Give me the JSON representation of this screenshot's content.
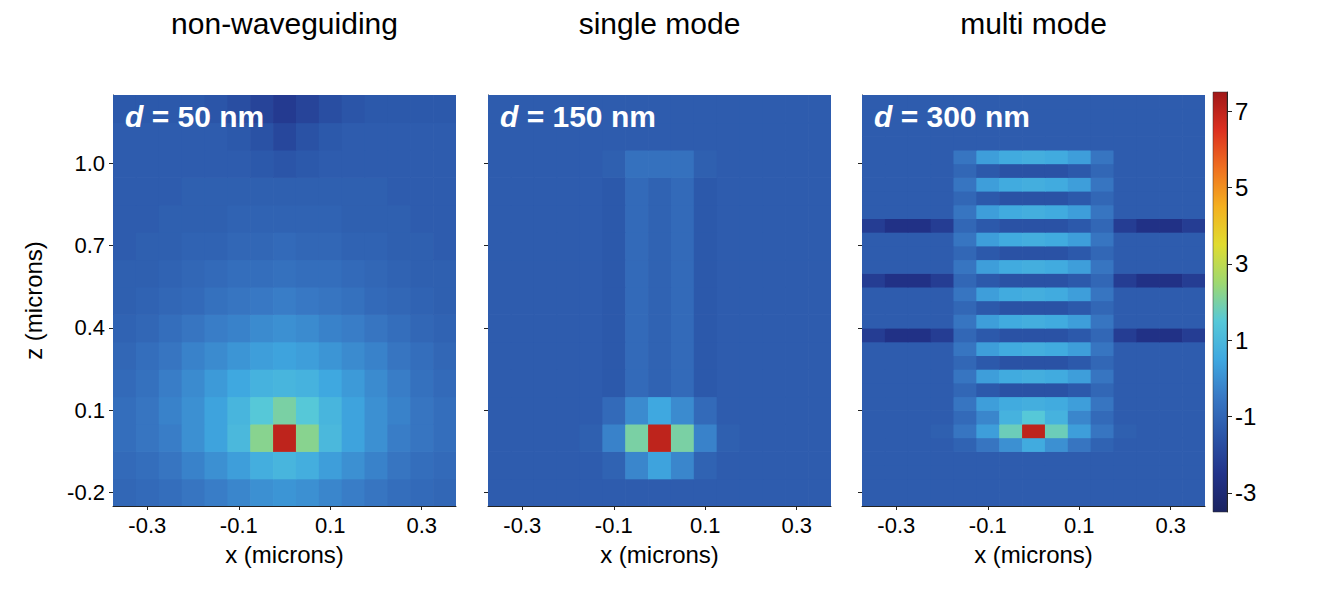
{
  "chart_data": [
    {
      "type": "heatmap",
      "title": "non-waveguiding",
      "annotation": "d = 50 nm",
      "x_label": "x (microns)",
      "y_label": "z (microns)",
      "xlim": [
        -0.375,
        0.375
      ],
      "ylim": [
        -0.25,
        1.25
      ],
      "xticks": [
        -0.3,
        -0.1,
        0.1,
        0.3
      ],
      "yticks": [
        -0.2,
        0.1,
        0.4,
        0.7,
        {
          "value": 1,
          "label": "1.0"
        }
      ],
      "x": [
        -0.35,
        -0.3,
        -0.25,
        -0.2,
        -0.15,
        -0.1,
        -0.05,
        0,
        0.05,
        0.1,
        0.15,
        0.2,
        0.25,
        0.3,
        0.35
      ],
      "y": [
        -0.2,
        -0.1,
        0,
        0.1,
        0.2,
        0.3,
        0.4,
        0.5,
        0.6,
        0.7,
        0.8,
        0.9,
        1.0,
        1.1,
        1.2
      ],
      "cells": [
        [
          -1.0,
          -0.9,
          -0.8,
          -0.6,
          -0.4,
          -0.2,
          0.0,
          0.1,
          0.0,
          -0.2,
          -0.4,
          -0.6,
          -0.8,
          -0.9,
          -1.0
        ],
        [
          -0.9,
          -0.8,
          -0.6,
          -0.3,
          0.0,
          0.3,
          0.7,
          0.9,
          0.7,
          0.3,
          0.0,
          -0.3,
          -0.6,
          -0.8,
          -0.9
        ],
        [
          -0.8,
          -0.6,
          -0.4,
          0.0,
          0.4,
          1.0,
          2.2,
          7.0,
          2.2,
          1.0,
          0.4,
          0.0,
          -0.4,
          -0.6,
          -0.8
        ],
        [
          -0.8,
          -0.6,
          -0.3,
          0.0,
          0.4,
          0.9,
          1.5,
          2.0,
          1.5,
          0.9,
          0.4,
          0.0,
          -0.3,
          -0.6,
          -0.8
        ],
        [
          -0.9,
          -0.7,
          -0.4,
          -0.1,
          0.2,
          0.5,
          0.8,
          0.9,
          0.8,
          0.5,
          0.2,
          -0.1,
          -0.4,
          -0.7,
          -0.9
        ],
        [
          -1.0,
          -0.8,
          -0.6,
          -0.3,
          -0.1,
          0.1,
          0.3,
          0.4,
          0.3,
          0.1,
          -0.1,
          -0.3,
          -0.6,
          -0.8,
          -1.0
        ],
        [
          -1.1,
          -1.0,
          -0.8,
          -0.6,
          -0.4,
          -0.3,
          -0.1,
          0.0,
          -0.1,
          -0.3,
          -0.4,
          -0.6,
          -0.8,
          -1.0,
          -1.1
        ],
        [
          -1.2,
          -1.1,
          -1.0,
          -0.9,
          -0.7,
          -0.6,
          -0.5,
          -0.4,
          -0.5,
          -0.6,
          -0.7,
          -0.9,
          -1.0,
          -1.1,
          -1.2
        ],
        [
          -1.2,
          -1.2,
          -1.1,
          -1.0,
          -0.9,
          -0.8,
          -0.8,
          -0.7,
          -0.8,
          -0.8,
          -0.9,
          -1.0,
          -1.1,
          -1.2,
          -1.2
        ],
        [
          -1.3,
          -1.2,
          -1.2,
          -1.1,
          -1.1,
          -1.0,
          -1.0,
          -0.9,
          -1.0,
          -1.0,
          -1.1,
          -1.1,
          -1.2,
          -1.2,
          -1.3
        ],
        [
          -1.3,
          -1.3,
          -1.2,
          -1.2,
          -1.2,
          -1.1,
          -1.1,
          -1.1,
          -1.1,
          -1.1,
          -1.2,
          -1.2,
          -1.2,
          -1.3,
          -1.3
        ],
        [
          -1.3,
          -1.3,
          -1.3,
          -1.2,
          -1.2,
          -1.2,
          -1.2,
          -1.2,
          -1.2,
          -1.2,
          -1.2,
          -1.2,
          -1.3,
          -1.3,
          -1.3
        ],
        [
          -1.3,
          -1.3,
          -1.3,
          -1.3,
          -1.3,
          -1.3,
          -1.4,
          -1.5,
          -1.4,
          -1.3,
          -1.3,
          -1.3,
          -1.3,
          -1.3,
          -1.3
        ],
        [
          -1.3,
          -1.3,
          -1.3,
          -1.3,
          -1.3,
          -1.4,
          -1.6,
          -1.9,
          -1.6,
          -1.4,
          -1.3,
          -1.3,
          -1.3,
          -1.3,
          -1.3
        ],
        [
          -1.4,
          -1.4,
          -1.4,
          -1.4,
          -1.5,
          -1.7,
          -2.0,
          -2.3,
          -2.0,
          -1.7,
          -1.5,
          -1.4,
          -1.4,
          -1.4,
          -1.4
        ]
      ]
    },
    {
      "type": "heatmap",
      "title": "single mode",
      "annotation": "d = 150 nm",
      "x_label": "x (microns)",
      "tick_labels": "x",
      "xlim": [
        -0.375,
        0.375
      ],
      "ylim": [
        -0.25,
        1.25
      ],
      "xticks": [
        -0.3,
        -0.1,
        0.1,
        0.3
      ],
      "yticks": [
        -0.2,
        0.1,
        0.4,
        0.7,
        {
          "value": 1,
          "label": "1.0"
        }
      ],
      "x": [
        -0.35,
        -0.3,
        -0.25,
        -0.2,
        -0.15,
        -0.1,
        -0.05,
        0,
        0.05,
        0.1,
        0.15,
        0.2,
        0.25,
        0.3,
        0.35
      ],
      "y": [
        -0.2,
        -0.1,
        0,
        0.1,
        0.2,
        0.3,
        0.4,
        0.5,
        0.6,
        0.7,
        0.8,
        0.9,
        1.0,
        1.1,
        1.2
      ],
      "cells": [
        [
          -1.3,
          -1.3,
          -1.3,
          -1.3,
          -1.3,
          -1.3,
          -1.3,
          -1.3,
          -1.3,
          -1.3,
          -1.3,
          -1.3,
          -1.3,
          -1.3,
          -1.3
        ],
        [
          -1.3,
          -1.3,
          -1.3,
          -1.3,
          -1.3,
          -1.1,
          -0.2,
          0.4,
          -0.2,
          -1.1,
          -1.3,
          -1.3,
          -1.3,
          -1.3,
          -1.3
        ],
        [
          -1.3,
          -1.3,
          -1.3,
          -1.3,
          -1.2,
          -0.3,
          2.0,
          7.0,
          2.0,
          -0.3,
          -1.2,
          -1.3,
          -1.3,
          -1.3,
          -1.3
        ],
        [
          -1.3,
          -1.3,
          -1.3,
          -1.3,
          -1.3,
          -0.9,
          -0.1,
          0.5,
          -0.1,
          -0.9,
          -1.3,
          -1.3,
          -1.3,
          -1.3,
          -1.3
        ],
        [
          -1.3,
          -1.3,
          -1.3,
          -1.3,
          -1.3,
          -1.4,
          -0.9,
          -1.1,
          -0.9,
          -1.4,
          -1.3,
          -1.3,
          -1.3,
          -1.3,
          -1.3
        ],
        [
          -1.3,
          -1.3,
          -1.3,
          -1.3,
          -1.3,
          -1.4,
          -0.9,
          -1.1,
          -0.9,
          -1.4,
          -1.3,
          -1.3,
          -1.3,
          -1.3,
          -1.3
        ],
        [
          -1.3,
          -1.3,
          -1.3,
          -1.3,
          -1.3,
          -1.4,
          -0.9,
          -1.1,
          -0.9,
          -1.4,
          -1.3,
          -1.3,
          -1.3,
          -1.3,
          -1.3
        ],
        [
          -1.3,
          -1.3,
          -1.3,
          -1.3,
          -1.3,
          -1.4,
          -0.9,
          -1.1,
          -0.9,
          -1.4,
          -1.3,
          -1.3,
          -1.3,
          -1.3,
          -1.3
        ],
        [
          -1.3,
          -1.3,
          -1.3,
          -1.3,
          -1.3,
          -1.4,
          -0.9,
          -1.1,
          -0.9,
          -1.4,
          -1.3,
          -1.3,
          -1.3,
          -1.3,
          -1.3
        ],
        [
          -1.3,
          -1.3,
          -1.3,
          -1.3,
          -1.3,
          -1.4,
          -0.9,
          -1.1,
          -0.9,
          -1.4,
          -1.3,
          -1.3,
          -1.3,
          -1.3,
          -1.3
        ],
        [
          -1.3,
          -1.3,
          -1.3,
          -1.3,
          -1.3,
          -1.4,
          -0.9,
          -1.1,
          -0.9,
          -1.4,
          -1.3,
          -1.3,
          -1.3,
          -1.3,
          -1.3
        ],
        [
          -1.3,
          -1.3,
          -1.3,
          -1.3,
          -1.3,
          -1.4,
          -0.9,
          -1.1,
          -0.9,
          -1.4,
          -1.3,
          -1.3,
          -1.3,
          -1.3,
          -1.3
        ],
        [
          -1.3,
          -1.3,
          -1.3,
          -1.3,
          -1.3,
          -1.2,
          -0.7,
          -0.7,
          -0.7,
          -1.2,
          -1.3,
          -1.3,
          -1.3,
          -1.3,
          -1.3
        ],
        [
          -1.3,
          -1.3,
          -1.3,
          -1.3,
          -1.3,
          -1.3,
          -1.3,
          -1.3,
          -1.3,
          -1.3,
          -1.3,
          -1.3,
          -1.3,
          -1.3,
          -1.3
        ],
        [
          -1.3,
          -1.3,
          -1.3,
          -1.3,
          -1.3,
          -1.3,
          -1.3,
          -1.3,
          -1.3,
          -1.3,
          -1.3,
          -1.3,
          -1.3,
          -1.3,
          -1.3
        ]
      ]
    },
    {
      "type": "heatmap",
      "title": "multi mode",
      "annotation": "d = 300 nm",
      "x_label": "x (microns)",
      "tick_labels": "x",
      "xlim": [
        -0.375,
        0.375
      ],
      "ylim": [
        -0.25,
        1.25
      ],
      "xticks": [
        -0.3,
        -0.1,
        0.1,
        0.3
      ],
      "yticks": [
        -0.2,
        0.1,
        0.4,
        0.7,
        {
          "value": 1,
          "label": "1.0"
        }
      ],
      "colorbar_range": [
        -3.5,
        7.5
      ],
      "colorbar_ticks": [
        -3,
        -1,
        1,
        3,
        5,
        7
      ],
      "x": [
        -0.35,
        -0.3,
        -0.25,
        -0.2,
        -0.15,
        -0.1,
        -0.05,
        0,
        0.05,
        0.1,
        0.15,
        0.2,
        0.25,
        0.3,
        0.35
      ],
      "y": [
        -0.225,
        -0.175,
        -0.125,
        -0.075,
        -0.025,
        0.025,
        0.075,
        0.125,
        0.175,
        0.225,
        0.275,
        0.325,
        0.375,
        0.425,
        0.475,
        0.525,
        0.575,
        0.625,
        0.675,
        0.725,
        0.775,
        0.825,
        0.875,
        0.925,
        0.975,
        1.025,
        1.075,
        1.125,
        1.175,
        1.225
      ],
      "cells": [
        [
          -1.3,
          -1.3,
          -1.3,
          -1.3,
          -1.3,
          -1.3,
          -1.3,
          -1.3,
          -1.3,
          -1.3,
          -1.3,
          -1.3,
          -1.3,
          -1.3,
          -1.3
        ],
        [
          -1.3,
          -1.3,
          -1.3,
          -1.3,
          -1.3,
          -1.3,
          -1.3,
          -1.3,
          -1.3,
          -1.3,
          -1.3,
          -1.3,
          -1.3,
          -1.3,
          -1.3
        ],
        [
          -1.3,
          -1.3,
          -1.3,
          -1.3,
          -1.3,
          -1.3,
          -1.3,
          -1.3,
          -1.3,
          -1.3,
          -1.3,
          -1.3,
          -1.3,
          -1.3,
          -1.3
        ],
        [
          -1.3,
          -1.3,
          -1.3,
          -1.3,
          -1.3,
          -1.3,
          -1.3,
          -1.3,
          -1.3,
          -1.3,
          -1.3,
          -1.3,
          -1.3,
          -1.3,
          -1.3
        ],
        [
          -1.3,
          -1.3,
          -1.3,
          -1.3,
          -1.1,
          -0.6,
          0.0,
          0.6,
          0.0,
          -0.6,
          -1.1,
          -1.3,
          -1.3,
          -1.3,
          -1.3
        ],
        [
          -1.3,
          -1.3,
          -1.3,
          -1.2,
          -0.6,
          0.3,
          1.8,
          7.0,
          1.8,
          0.3,
          -0.6,
          -1.2,
          -1.3,
          -1.3,
          -1.3
        ],
        [
          -1.3,
          -1.3,
          -1.3,
          -1.3,
          -0.9,
          -0.2,
          0.8,
          1.5,
          0.8,
          -0.2,
          -0.9,
          -1.3,
          -1.3,
          -1.3,
          -1.3
        ],
        [
          -1.3,
          -1.3,
          -1.3,
          -1.3,
          -0.6,
          0.3,
          0.6,
          0.7,
          0.6,
          0.3,
          -0.6,
          -1.3,
          -1.3,
          -1.3,
          -1.3
        ],
        [
          -1.3,
          -1.3,
          -1.3,
          -1.3,
          -1.0,
          -1.4,
          -1.6,
          -1.6,
          -1.6,
          -1.4,
          -1.0,
          -1.3,
          -1.3,
          -1.3,
          -1.3
        ],
        [
          -1.3,
          -1.3,
          -1.3,
          -1.3,
          -0.6,
          0.3,
          0.6,
          0.7,
          0.6,
          0.3,
          -0.6,
          -1.3,
          -1.3,
          -1.3,
          -1.3
        ],
        [
          -1.3,
          -1.3,
          -1.3,
          -1.3,
          -1.0,
          -1.4,
          -1.6,
          -1.6,
          -1.6,
          -1.4,
          -1.0,
          -1.3,
          -1.3,
          -1.3,
          -1.3
        ],
        [
          -1.3,
          -1.3,
          -1.3,
          -1.3,
          -0.6,
          0.3,
          0.6,
          0.7,
          0.6,
          0.3,
          -0.6,
          -1.3,
          -1.3,
          -1.3,
          -1.3
        ],
        [
          -2.2,
          -2.6,
          -2.6,
          -2.2,
          -1.0,
          -1.4,
          -1.6,
          -1.6,
          -1.6,
          -1.4,
          -1.0,
          -2.2,
          -2.6,
          -2.6,
          -2.2
        ],
        [
          -1.3,
          -1.3,
          -1.3,
          -1.3,
          -0.6,
          0.3,
          0.6,
          0.7,
          0.6,
          0.3,
          -0.6,
          -1.3,
          -1.3,
          -1.3,
          -1.3
        ],
        [
          -1.3,
          -1.3,
          -1.3,
          -1.3,
          -1.0,
          -1.4,
          -1.6,
          -1.6,
          -1.6,
          -1.4,
          -1.0,
          -1.3,
          -1.3,
          -1.3,
          -1.3
        ],
        [
          -1.3,
          -1.3,
          -1.3,
          -1.3,
          -0.6,
          0.3,
          0.6,
          0.7,
          0.6,
          0.3,
          -0.6,
          -1.3,
          -1.3,
          -1.3,
          -1.3
        ],
        [
          -2.2,
          -2.6,
          -2.6,
          -2.2,
          -1.0,
          -1.4,
          -1.6,
          -1.6,
          -1.6,
          -1.4,
          -1.0,
          -2.2,
          -2.6,
          -2.6,
          -2.2
        ],
        [
          -1.3,
          -1.3,
          -1.3,
          -1.3,
          -0.6,
          0.3,
          0.6,
          0.7,
          0.6,
          0.3,
          -0.6,
          -1.3,
          -1.3,
          -1.3,
          -1.3
        ],
        [
          -1.3,
          -1.3,
          -1.3,
          -1.3,
          -1.0,
          -1.4,
          -1.6,
          -1.6,
          -1.6,
          -1.4,
          -1.0,
          -1.3,
          -1.3,
          -1.3,
          -1.3
        ],
        [
          -1.3,
          -1.3,
          -1.3,
          -1.3,
          -0.6,
          0.3,
          0.6,
          0.7,
          0.6,
          0.3,
          -0.6,
          -1.3,
          -1.3,
          -1.3,
          -1.3
        ],
        [
          -2.2,
          -2.6,
          -2.6,
          -2.2,
          -1.0,
          -1.4,
          -1.6,
          -1.6,
          -1.6,
          -1.4,
          -1.0,
          -2.2,
          -2.6,
          -2.6,
          -2.2
        ],
        [
          -1.3,
          -1.3,
          -1.3,
          -1.3,
          -0.6,
          0.3,
          0.6,
          0.7,
          0.6,
          0.3,
          -0.6,
          -1.3,
          -1.3,
          -1.3,
          -1.3
        ],
        [
          -1.3,
          -1.3,
          -1.3,
          -1.3,
          -1.0,
          -1.4,
          -1.6,
          -1.6,
          -1.6,
          -1.4,
          -1.0,
          -1.3,
          -1.3,
          -1.3,
          -1.3
        ],
        [
          -1.3,
          -1.3,
          -1.3,
          -1.3,
          -0.6,
          0.3,
          0.6,
          0.7,
          0.6,
          0.3,
          -0.6,
          -1.3,
          -1.3,
          -1.3,
          -1.3
        ],
        [
          -1.3,
          -1.3,
          -1.3,
          -1.3,
          -1.0,
          -1.4,
          -1.6,
          -1.6,
          -1.6,
          -1.4,
          -1.0,
          -1.3,
          -1.3,
          -1.3,
          -1.3
        ],
        [
          -1.3,
          -1.3,
          -1.3,
          -1.3,
          -0.6,
          0.3,
          0.6,
          0.7,
          0.6,
          0.3,
          -0.6,
          -1.3,
          -1.3,
          -1.3,
          -1.3
        ],
        [
          -1.3,
          -1.3,
          -1.3,
          -1.3,
          -1.3,
          -1.3,
          -1.3,
          -1.3,
          -1.3,
          -1.3,
          -1.3,
          -1.3,
          -1.3,
          -1.3,
          -1.3
        ],
        [
          -1.3,
          -1.3,
          -1.3,
          -1.3,
          -1.3,
          -1.3,
          -1.3,
          -1.3,
          -1.3,
          -1.3,
          -1.3,
          -1.3,
          -1.3,
          -1.3,
          -1.3
        ],
        [
          -1.3,
          -1.3,
          -1.3,
          -1.3,
          -1.3,
          -1.3,
          -1.3,
          -1.3,
          -1.3,
          -1.3,
          -1.3,
          -1.3,
          -1.3,
          -1.3,
          -1.3
        ],
        [
          -1.3,
          -1.3,
          -1.3,
          -1.3,
          -1.3,
          -1.3,
          -1.3,
          -1.3,
          -1.3,
          -1.3,
          -1.3,
          -1.3,
          -1.3,
          -1.3,
          -1.3
        ]
      ]
    }
  ]
}
